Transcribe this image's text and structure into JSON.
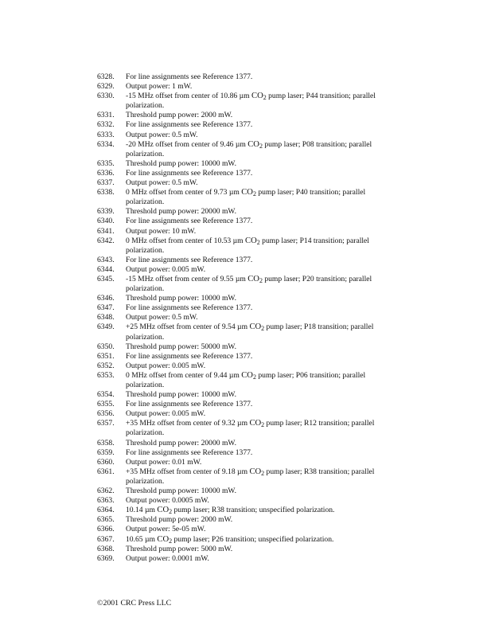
{
  "notes": [
    {
      "num": "6328.",
      "text": "For line assignments see Reference 1377."
    },
    {
      "num": "6329.",
      "text": "Output power: 1 mW."
    },
    {
      "num": "6330.",
      "before": "-15 MHz offset from center of 10.86 µm ",
      "chem": "CO",
      "subscript": "2",
      "after": " pump laser; P44 transition; parallel",
      "continuation": "polarization."
    },
    {
      "num": "6331.",
      "text": "Threshold pump power: 2000 mW."
    },
    {
      "num": "6332.",
      "text": "For line assignments see Reference 1377."
    },
    {
      "num": "6333.",
      "text": "Output power: 0.5 mW."
    },
    {
      "num": "6334.",
      "before": "-20 MHz offset from center of 9.46 µm ",
      "chem": "CO",
      "subscript": "2",
      "after": " pump laser; P08 transition; parallel",
      "continuation": "polarization."
    },
    {
      "num": "6335.",
      "text": "Threshold pump power: 10000 mW."
    },
    {
      "num": "6336.",
      "text": "For line assignments see Reference 1377."
    },
    {
      "num": "6337.",
      "text": "Output power: 0.5 mW."
    },
    {
      "num": "6338.",
      "before": "0 MHz offset from center of 9.73  µm ",
      "chem": "CO",
      "subscript": "2",
      "after": " pump laser; P40 transition; parallel",
      "continuation": "polarization."
    },
    {
      "num": "6339.",
      "text": "Threshold pump power: 20000 mW."
    },
    {
      "num": "6340.",
      "text": "For line assignments see Reference 1377."
    },
    {
      "num": "6341.",
      "text": "Output power: 10 mW."
    },
    {
      "num": "6342.",
      "before": "0 MHz offset from center of 10.53  µm ",
      "chem": "CO",
      "subscript": "2",
      "after": " pump laser; P14 transition; parallel",
      "continuation": "polarization."
    },
    {
      "num": "6343.",
      "text": "For line assignments see Reference 1377."
    },
    {
      "num": "6344.",
      "text": "Output power: 0.005 mW."
    },
    {
      "num": "6345.",
      "before": "-15 MHz offset from center of 9.55 µm ",
      "chem": "CO",
      "subscript": "2",
      "after": " pump laser; P20 transition; parallel",
      "continuation": "polarization."
    },
    {
      "num": "6346.",
      "text": "Threshold pump power: 10000 mW."
    },
    {
      "num": "6347.",
      "text": "For line assignments see Reference 1377."
    },
    {
      "num": "6348.",
      "text": "Output power: 0.5 mW."
    },
    {
      "num": "6349.",
      "before": "+25 MHz offset from center of 9.54 µm ",
      "chem": "CO",
      "subscript": "2",
      "after": " pump laser; P18 transition; parallel",
      "continuation": "polarization."
    },
    {
      "num": "6350.",
      "text": "Threshold pump power: 50000 mW."
    },
    {
      "num": "6351.",
      "text": "For line assignments see Reference 1377."
    },
    {
      "num": "6352.",
      "text": "Output power: 0.005 mW."
    },
    {
      "num": "6353.",
      "before": "0 MHz offset from center of 9.44  µm ",
      "chem": "CO",
      "subscript": "2",
      "after": " pump laser; P06 transition; parallel",
      "continuation": "polarization."
    },
    {
      "num": "6354.",
      "text": "Threshold pump power: 10000 mW."
    },
    {
      "num": "6355.",
      "text": "For line assignments see Reference 1377."
    },
    {
      "num": "6356.",
      "text": "Output power: 0.005 mW."
    },
    {
      "num": "6357.",
      "before": "+35 MHz offset from center of 9.32 µm ",
      "chem": "CO",
      "subscript": "2",
      "after": " pump laser; R12 transition; parallel",
      "continuation": "polarization."
    },
    {
      "num": "6358.",
      "text": "Threshold pump power: 20000 mW."
    },
    {
      "num": "6359.",
      "text": "For line assignments see Reference 1377."
    },
    {
      "num": "6360.",
      "text": "Output power: 0.01 mW."
    },
    {
      "num": "6361.",
      "before": "+35 MHz offset from center of 9.18 µm ",
      "chem": "CO",
      "subscript": "2",
      "after": " pump laser; R38 transition; parallel",
      "continuation": "polarization."
    },
    {
      "num": "6362.",
      "text": "Threshold pump power: 10000 mW."
    },
    {
      "num": "6363.",
      "text": "Output power: 0.0005 mW."
    },
    {
      "num": "6364.",
      "before": "10.14 µm ",
      "chem": "CO",
      "subscript": "2",
      "after": " pump laser; R38 transition; unspecified polarization."
    },
    {
      "num": "6365.",
      "text": "Threshold pump power: 2000 mW."
    },
    {
      "num": "6366.",
      "text": "Output power: 5e-05 mW."
    },
    {
      "num": "6367.",
      "before": "10.65 µm ",
      "chem": "CO",
      "subscript": "2",
      "after": " pump laser; P26 transition; unspecified polarization."
    },
    {
      "num": "6368.",
      "text": "Threshold pump power: 5000 mW."
    },
    {
      "num": "6369.",
      "text": "Output power: 0.0001 mW."
    }
  ],
  "footer": "©2001 CRC Press LLC"
}
